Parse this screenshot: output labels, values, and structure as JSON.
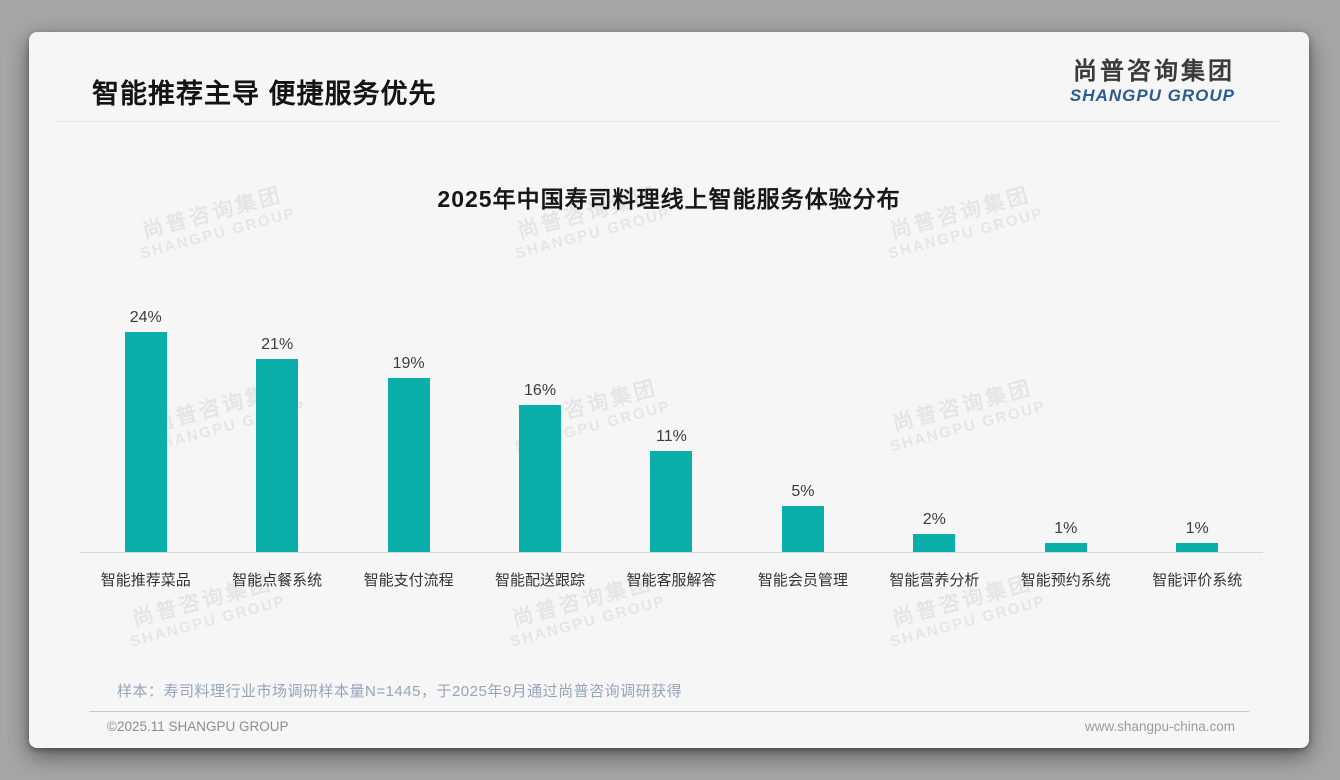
{
  "page": {
    "title": "智能推荐主导 便捷服务优先",
    "logo": {
      "cn": "尚普咨询集团",
      "en": "SHANGPU GROUP"
    },
    "watermark": {
      "cn": "尚普咨询集团",
      "en": "SHANGPU GROUP"
    },
    "note": "样本：寿司料理行业市场调研样本量N=1445，于2025年9月通过尚普咨询调研获得",
    "footer": {
      "left": "©2025.11 SHANGPU GROUP",
      "right": "www.shangpu-china.com"
    }
  },
  "colors": {
    "bar": "#0aafaa",
    "logo_blue": "#2a5c8f",
    "note_text": "#97a5b8"
  },
  "chart_data": {
    "type": "bar",
    "title": "2025年中国寿司料理线上智能服务体验分布",
    "categories": [
      "智能推荐菜品",
      "智能点餐系统",
      "智能支付流程",
      "智能配送跟踪",
      "智能客服解答",
      "智能会员管理",
      "智能营养分析",
      "智能预约系统",
      "智能评价系统"
    ],
    "values": [
      24,
      21,
      19,
      16,
      11,
      5,
      2,
      1,
      1
    ],
    "unit": "%",
    "ylim": [
      0,
      26
    ],
    "grid": false,
    "data_labels": true,
    "legend": "none",
    "bar_color": "#0aafaa"
  }
}
